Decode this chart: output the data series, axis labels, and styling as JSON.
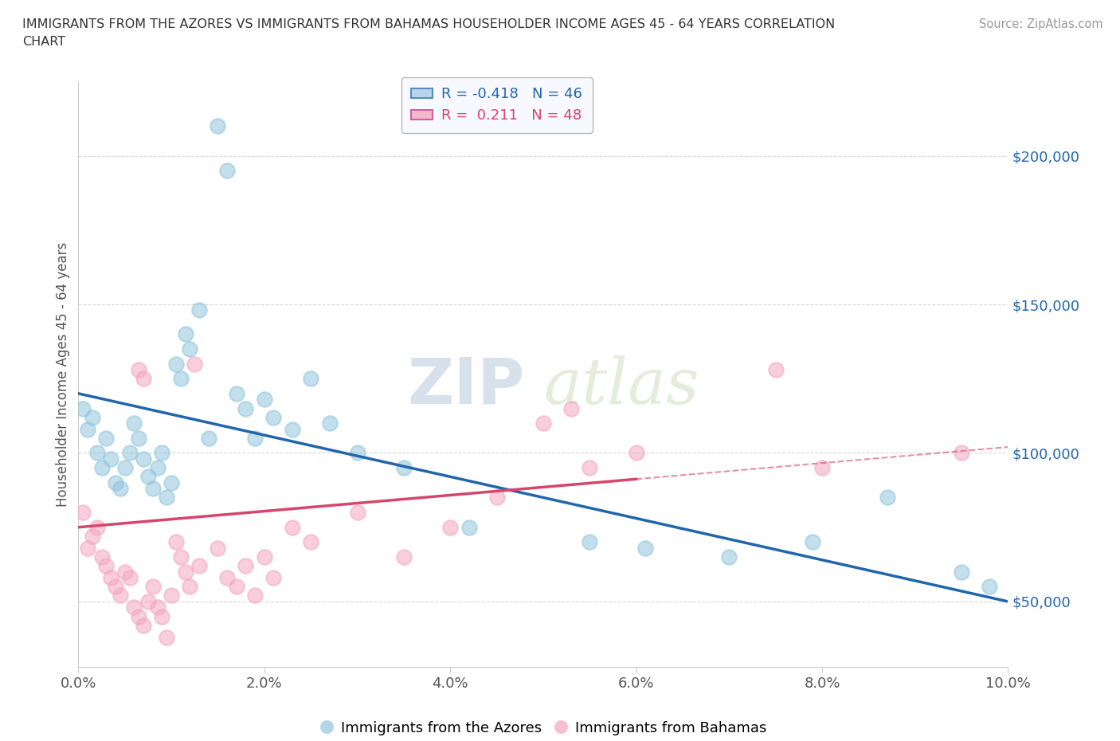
{
  "title_line1": "IMMIGRANTS FROM THE AZORES VS IMMIGRANTS FROM BAHAMAS HOUSEHOLDER INCOME AGES 45 - 64 YEARS CORRELATION",
  "title_line2": "CHART",
  "source_text": "Source: ZipAtlas.com",
  "ylabel": "Householder Income Ages 45 - 64 years",
  "xlim": [
    0.0,
    10.0
  ],
  "ylim": [
    28000,
    225000
  ],
  "yticks": [
    50000,
    100000,
    150000,
    200000
  ],
  "ytick_labels": [
    "$50,000",
    "$100,000",
    "$150,000",
    "$200,000"
  ],
  "xticks": [
    0.0,
    2.0,
    4.0,
    6.0,
    8.0,
    10.0
  ],
  "xtick_labels": [
    "0.0%",
    "2.0%",
    "4.0%",
    "6.0%",
    "8.0%",
    "10.0%"
  ],
  "azores_color": "#92c5de",
  "bahamas_color": "#f4a6c0",
  "azores_line_color": "#2166ac",
  "bahamas_line_color": "#d6456b",
  "bahamas_dash_color": "#d6456b",
  "azores_R": -0.418,
  "azores_N": 46,
  "bahamas_R": 0.211,
  "bahamas_N": 48,
  "watermark_zip": "ZIP",
  "watermark_atlas": "atlas",
  "background_color": "#ffffff",
  "grid_color": "#cccccc",
  "azores_line_y0": 120000,
  "azores_line_y10": 50000,
  "bahamas_line_y0": 75000,
  "bahamas_line_y10": 102000,
  "azores_x": [
    0.05,
    0.1,
    0.15,
    0.2,
    0.25,
    0.3,
    0.35,
    0.4,
    0.45,
    0.5,
    0.55,
    0.6,
    0.65,
    0.7,
    0.75,
    0.8,
    0.85,
    0.9,
    0.95,
    1.0,
    1.05,
    1.1,
    1.15,
    1.2,
    1.3,
    1.5,
    1.6,
    1.7,
    1.8,
    1.9,
    2.0,
    2.1,
    2.3,
    2.5,
    2.7,
    3.0,
    3.5,
    4.2,
    5.5,
    6.1,
    7.0,
    7.9,
    8.7,
    9.5,
    9.8,
    1.4
  ],
  "azores_y": [
    115000,
    108000,
    112000,
    100000,
    95000,
    105000,
    98000,
    90000,
    88000,
    95000,
    100000,
    110000,
    105000,
    98000,
    92000,
    88000,
    95000,
    100000,
    85000,
    90000,
    130000,
    125000,
    140000,
    135000,
    148000,
    210000,
    195000,
    120000,
    115000,
    105000,
    118000,
    112000,
    108000,
    125000,
    110000,
    100000,
    95000,
    75000,
    70000,
    68000,
    65000,
    70000,
    85000,
    60000,
    55000,
    105000
  ],
  "bahamas_x": [
    0.05,
    0.1,
    0.15,
    0.2,
    0.25,
    0.3,
    0.35,
    0.4,
    0.45,
    0.5,
    0.55,
    0.6,
    0.65,
    0.7,
    0.75,
    0.8,
    0.85,
    0.9,
    0.95,
    1.0,
    1.05,
    1.1,
    1.15,
    1.2,
    1.3,
    1.5,
    1.6,
    1.7,
    1.8,
    1.9,
    2.0,
    2.1,
    2.3,
    2.5,
    3.0,
    3.5,
    4.0,
    4.5,
    5.0,
    5.3,
    5.5,
    6.0,
    7.5,
    8.0,
    9.5,
    1.25,
    0.65,
    0.7
  ],
  "bahamas_y": [
    80000,
    68000,
    72000,
    75000,
    65000,
    62000,
    58000,
    55000,
    52000,
    60000,
    58000,
    48000,
    45000,
    42000,
    50000,
    55000,
    48000,
    45000,
    38000,
    52000,
    70000,
    65000,
    60000,
    55000,
    62000,
    68000,
    58000,
    55000,
    62000,
    52000,
    65000,
    58000,
    75000,
    70000,
    80000,
    65000,
    75000,
    85000,
    110000,
    115000,
    95000,
    100000,
    128000,
    95000,
    100000,
    130000,
    128000,
    125000
  ]
}
